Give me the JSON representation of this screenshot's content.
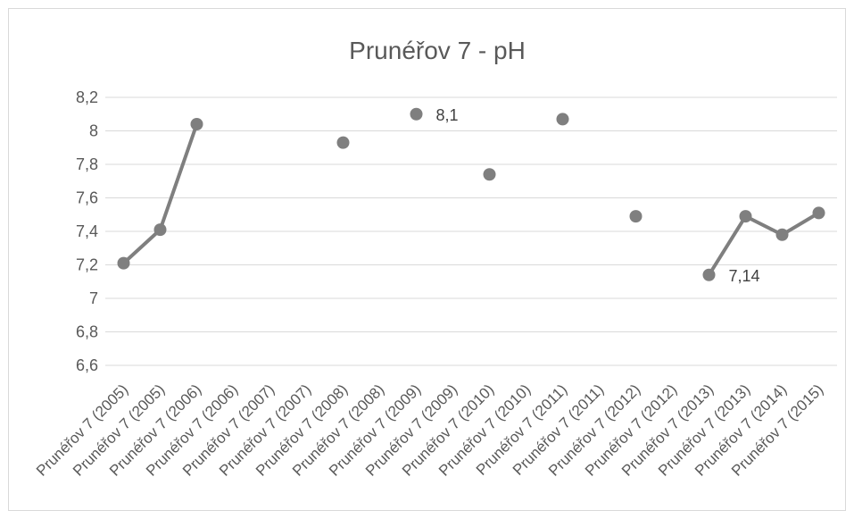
{
  "chart_data": {
    "type": "line",
    "title": "Prunéřov 7 - pH",
    "xlabel": "",
    "ylabel": "",
    "ylim": [
      6.6,
      8.2
    ],
    "yticks": [
      "8,2",
      "8",
      "7,8",
      "7,6",
      "7,4",
      "7,2",
      "7",
      "6,8",
      "6,6"
    ],
    "ytick_values": [
      8.2,
      8.0,
      7.8,
      7.6,
      7.4,
      7.2,
      7.0,
      6.8,
      6.6
    ],
    "categories": [
      "Prunéřov 7 (2005)",
      "Prunéřov 7 (2005)",
      "Prunéřov 7 (2006)",
      "Prunéřov 7 (2006)",
      "Prunéřov 7 (2007)",
      "Prunéřov 7 (2007)",
      "Prunéřov 7 (2008)",
      "Prunéřov 7 (2008)",
      "Prunéřov 7 (2009)",
      "Prunéřov 7 (2009)",
      "Prunéřov 7 (2010)",
      "Prunéřov 7 (2010)",
      "Prunéřov 7 (2011)",
      "Prunéřov 7 (2011)",
      "Prunéřov 7 (2012)",
      "Prunéřov 7 (2012)",
      "Prunéřov 7 (2013)",
      "Prunéřov 7 (2013)",
      "Prunéřov 7 (2014)",
      "Prunéřov 7 (2015)"
    ],
    "series": [
      {
        "values": [
          7.21,
          7.41,
          8.04,
          null,
          null,
          null,
          7.93,
          null,
          8.1,
          null,
          7.74,
          null,
          8.07,
          null,
          7.49,
          null,
          7.14,
          7.49,
          7.38,
          7.51
        ],
        "color": "#7f7f7f"
      }
    ],
    "data_labels": [
      {
        "index": 8,
        "text": "8,1"
      },
      {
        "index": 16,
        "text": "7,14"
      }
    ],
    "grid": true,
    "legend": "none"
  }
}
